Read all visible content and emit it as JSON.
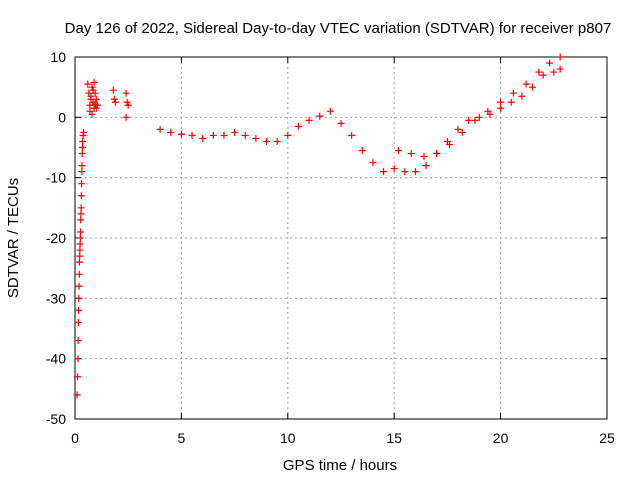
{
  "chart_data": {
    "type": "scatter",
    "title": "Day 126 of 2022, Sidereal Day-to-day VTEC variation (SDTVAR) for receiver p807",
    "xlabel": "GPS time / hours",
    "ylabel": "SDTVAR / TECUs",
    "xlim": [
      0,
      25
    ],
    "ylim": [
      -50,
      10
    ],
    "xticks": [
      0,
      5,
      10,
      15,
      20,
      25
    ],
    "yticks": [
      -50,
      -40,
      -30,
      -20,
      -10,
      0,
      10
    ],
    "grid": true,
    "marker": "plus",
    "color": "#ff0000",
    "series": [
      {
        "name": "early_descent",
        "x": [
          0.1,
          0.12,
          0.14,
          0.15,
          0.16,
          0.17,
          0.18,
          0.19,
          0.2,
          0.21,
          0.22,
          0.23,
          0.24,
          0.25,
          0.26,
          0.27,
          0.28,
          0.29,
          0.3,
          0.31,
          0.32,
          0.33,
          0.34,
          0.35,
          0.36,
          0.38,
          0.4
        ],
        "y": [
          -46,
          -43,
          -40,
          -37,
          -34,
          -32,
          -30,
          -28,
          -26,
          -24,
          -23,
          -22,
          -21,
          -20,
          -19,
          -17,
          -16,
          -15,
          -13,
          -11,
          -9,
          -8,
          -6,
          -5,
          -4,
          -3,
          -2.5
        ]
      },
      {
        "name": "early_cluster",
        "x": [
          0.6,
          0.65,
          0.7,
          0.75,
          0.8,
          0.85,
          0.9,
          0.95,
          1.0,
          1.05,
          0.7,
          0.8,
          0.9,
          1.0,
          0.75,
          0.85,
          0.95,
          1.8,
          1.85,
          1.9,
          2.4,
          2.45,
          2.5,
          2.4
        ],
        "y": [
          5.5,
          4,
          2,
          3.5,
          5,
          2.5,
          1.5,
          4,
          3,
          2,
          1,
          0.5,
          5.8,
          1.5,
          3,
          4.5,
          2.2,
          4.5,
          3,
          2.5,
          4,
          2.5,
          2,
          0
        ]
      },
      {
        "name": "main_band",
        "x": [
          4,
          4.5,
          5,
          5.5,
          6,
          6.5,
          7,
          7.5,
          8,
          8.5,
          9,
          9.5,
          10,
          10.5,
          11,
          11.5,
          12,
          12.5,
          13,
          13.5,
          14,
          14.5,
          15,
          15.5,
          16,
          16.5,
          17,
          17.5,
          18,
          18.5,
          19,
          19.5,
          20,
          20.5,
          21,
          21.5,
          22,
          22.5,
          22.8
        ],
        "y": [
          -2,
          -2.5,
          -2.8,
          -3,
          -3.5,
          -3,
          -3,
          -2.5,
          -3,
          -3.5,
          -4,
          -4,
          -3,
          -1.5,
          -0.5,
          0.2,
          1,
          -1,
          -3,
          -5.5,
          -7.5,
          -9,
          -8.5,
          -9,
          -9,
          -8,
          -6,
          -4,
          -2,
          -0.5,
          0,
          0.5,
          1.5,
          2.5,
          3.5,
          5,
          7,
          7.5,
          8
        ]
      },
      {
        "name": "upper_branch",
        "x": [
          15.2,
          15.8,
          16.4,
          17,
          17.6,
          18.2,
          18.8,
          19.4,
          20,
          20.6,
          21.2,
          21.8,
          22.3,
          22.8
        ],
        "y": [
          -5.5,
          -6,
          -6.5,
          -6,
          -4.5,
          -2.5,
          -0.5,
          1,
          2.5,
          4,
          5.5,
          7.5,
          9,
          10
        ]
      }
    ]
  }
}
